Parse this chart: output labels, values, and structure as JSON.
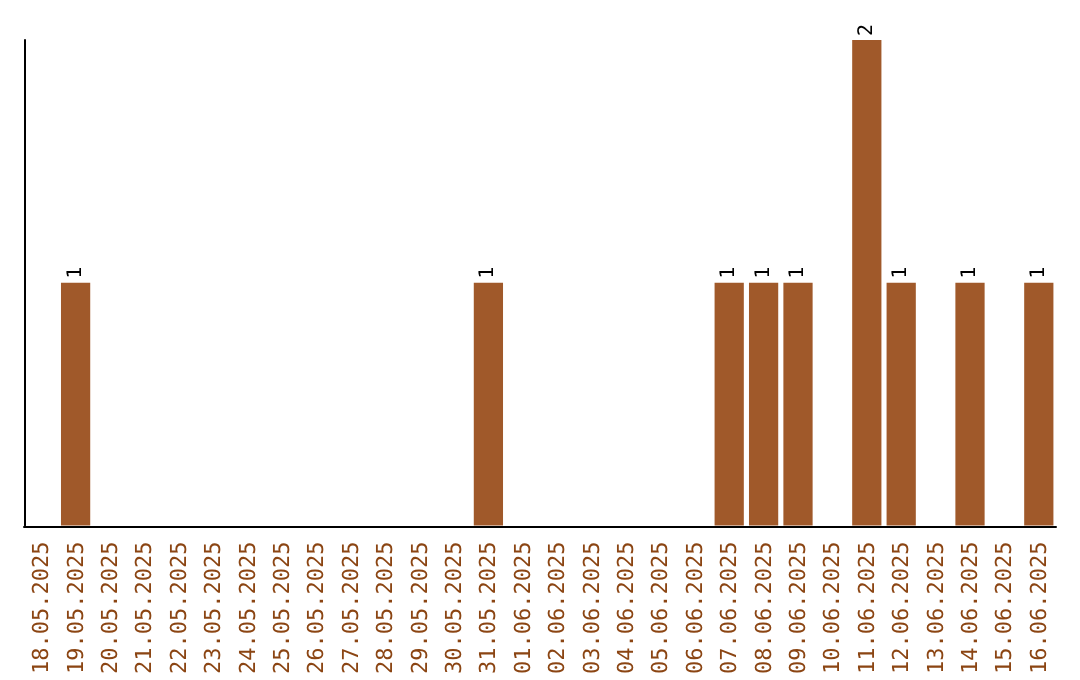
{
  "chart_data": {
    "type": "bar",
    "categories": [
      "18.05.2025",
      "19.05.2025",
      "20.05.2025",
      "21.05.2025",
      "22.05.2025",
      "23.05.2025",
      "24.05.2025",
      "25.05.2025",
      "26.05.2025",
      "27.05.2025",
      "28.05.2025",
      "29.05.2025",
      "30.05.2025",
      "31.05.2025",
      "01.06.2025",
      "02.06.2025",
      "03.06.2025",
      "04.06.2025",
      "05.06.2025",
      "06.06.2025",
      "07.06.2025",
      "08.06.2025",
      "09.06.2025",
      "10.06.2025",
      "11.06.2025",
      "12.06.2025",
      "13.06.2025",
      "14.06.2025",
      "15.06.2025",
      "16.06.2025"
    ],
    "values": [
      0,
      1,
      0,
      0,
      0,
      0,
      0,
      0,
      0,
      0,
      0,
      0,
      0,
      1,
      0,
      0,
      0,
      0,
      0,
      0,
      1,
      1,
      1,
      0,
      2,
      1,
      0,
      1,
      0,
      1
    ],
    "value_labels": [
      null,
      "1",
      null,
      null,
      null,
      null,
      null,
      null,
      null,
      null,
      null,
      null,
      null,
      "1",
      null,
      null,
      null,
      null,
      null,
      null,
      "1",
      "1",
      "1",
      null,
      "2",
      "1",
      null,
      "1",
      null,
      "1"
    ],
    "color": "#a0592a",
    "tick_labels": "x",
    "grid": false
  }
}
